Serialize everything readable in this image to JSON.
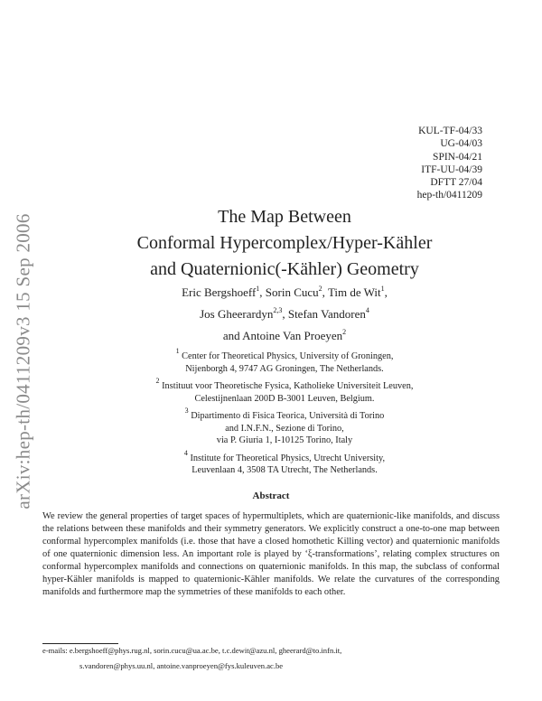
{
  "sidebar_stamp": "arXiv:hep-th/0411209v3  15 Sep 2006",
  "report_numbers": [
    "KUL-TF-04/33",
    "UG-04/03",
    "SPIN-04/21",
    "ITF-UU-04/39",
    "DFTT 27/04",
    "hep-th/0411209"
  ],
  "title_lines": [
    "The Map Between",
    "Conformal Hypercomplex/Hyper-Kähler",
    "and Quaternionic(-Kähler) Geometry"
  ],
  "authors": [
    {
      "name": "Eric Bergshoeff",
      "sup": "1",
      "sep": ", "
    },
    {
      "name": "Sorin Cucu",
      "sup": "2",
      "sep": ", "
    },
    {
      "name": "Tim de Wit",
      "sup": "1",
      "sep": ","
    },
    {
      "name": "Jos Gheerardyn",
      "sup": "2,3",
      "sep": ", "
    },
    {
      "name": "Stefan Vandoren",
      "sup": "4",
      "sep": ""
    },
    {
      "name": "and Antoine Van Proeyen",
      "sup": "2",
      "sep": ""
    }
  ],
  "affiliations": [
    {
      "num": "1",
      "lines": [
        "Center for Theoretical Physics, University of Groningen,",
        "Nijenborgh 4, 9747 AG Groningen, The Netherlands."
      ]
    },
    {
      "num": "2",
      "lines": [
        "Instituut voor Theoretische Fysica, Katholieke Universiteit Leuven,",
        "Celestijnenlaan 200D B-3001 Leuven, Belgium."
      ]
    },
    {
      "num": "3",
      "lines": [
        "Dipartimento di Fisica Teorica, Università di Torino",
        "and I.N.F.N., Sezione di Torino,",
        "via P. Giuria 1, I-10125 Torino, Italy"
      ]
    },
    {
      "num": "4",
      "lines": [
        "Institute for Theoretical Physics, Utrecht University,",
        "Leuvenlaan 4, 3508 TA Utrecht, The Netherlands."
      ]
    }
  ],
  "abstract_heading": "Abstract",
  "abstract": "We review the general properties of target spaces of hypermultiplets, which are quaternionic-like manifolds, and discuss the relations between these manifolds and their symmetry generators. We explicitly construct a one-to-one map between conformal hypercomplex manifolds (i.e. those that have a closed homothetic Killing vector) and quaternionic manifolds of one quaternionic dimension less. An important role is played by ‘ξ-transformations’, relating complex structures on conformal hypercomplex manifolds and connections on quaternionic manifolds. In this map, the subclass of conformal hyper-Kähler manifolds is mapped to quaternionic-Kähler manifolds. We relate the curvatures of the corresponding manifolds and furthermore map the symmetries of these manifolds to each other.",
  "emails": {
    "line1": "e-mails: e.bergshoeff@phys.rug.nl, sorin.cucu@ua.ac.be, t.c.dewit@azu.nl, gheerard@to.infn.it,",
    "line2": "s.vandoren@phys.uu.nl, antoine.vanproeyen@fys.kuleuven.ac.be"
  }
}
